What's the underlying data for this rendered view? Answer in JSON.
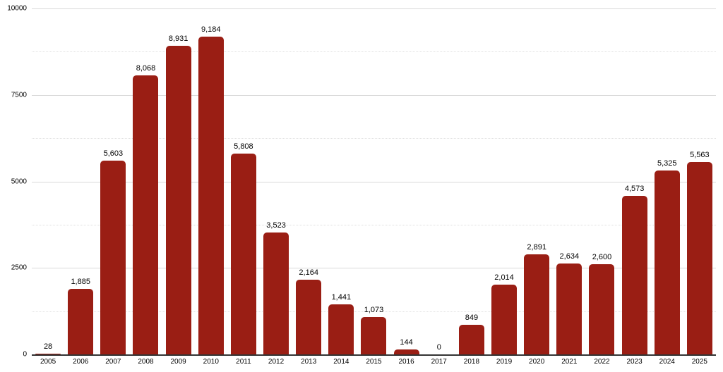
{
  "chart_data": {
    "type": "bar",
    "title": "",
    "xlabel": "",
    "ylabel": "",
    "categories": [
      "2005",
      "2006",
      "2007",
      "2008",
      "2009",
      "2010",
      "2011",
      "2012",
      "2013",
      "2014",
      "2015",
      "2016",
      "2017",
      "2018",
      "2019",
      "2020",
      "2021",
      "2022",
      "2023",
      "2024",
      "2025"
    ],
    "values": [
      28,
      1885,
      5603,
      8068,
      8931,
      9184,
      5808,
      3523,
      2164,
      1441,
      1073,
      144,
      0,
      849,
      2014,
      2891,
      2634,
      2600,
      4573,
      5325,
      5563
    ],
    "value_labels": [
      "28",
      "1,885",
      "5,603",
      "8,068",
      "8,931",
      "9,184",
      "5,808",
      "3,523",
      "2,164",
      "1,441",
      "1,073",
      "144",
      "0",
      "849",
      "2,014",
      "2,891",
      "2,634",
      "2,600",
      "4,573",
      "5,325",
      "5,563"
    ],
    "ylim": [
      0,
      10000
    ],
    "yticks": [
      0,
      2500,
      5000,
      7500,
      10000
    ],
    "ytick_labels": [
      "0",
      "2500",
      "5000",
      "7500",
      "10000"
    ],
    "minor_yticks": [
      1250,
      3750,
      6250,
      8750
    ],
    "grid": "major-solid-minor-dotted",
    "legend": "none",
    "colors": {
      "bar": "#9A1E14",
      "major_gridline": "#d9d9d9",
      "minor_gridline": "#e0e0e0",
      "axis_line": "#333333",
      "label_text": "#000000",
      "background": "#ffffff"
    }
  }
}
